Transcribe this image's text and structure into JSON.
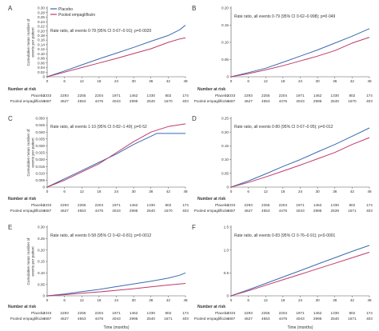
{
  "chart_data": [
    {
      "panel": "A",
      "type": "line",
      "ylabel": "Cumulative mean number of events per patient",
      "xlim": [
        0,
        48
      ],
      "ylim": [
        0,
        0.3
      ],
      "yticks": [
        "0",
        "0.02",
        "0.04",
        "0.06",
        "0.08",
        "0.10",
        "0.12",
        "0.14",
        "0.16",
        "0.18",
        "0.20",
        "0.22",
        "0.24",
        "0.26",
        "0.28",
        "0.30"
      ],
      "xticks": [
        0,
        6,
        12,
        18,
        24,
        30,
        36,
        42,
        48
      ],
      "legend": [
        "Placebo",
        "Pooled empagliflozin"
      ],
      "annotation": "Rate ratio, all events 0·78 (95% CI 0·67–0·91); p=0·0020",
      "series": [
        {
          "name": "Placebo",
          "x": [
            0,
            6,
            12,
            18,
            24,
            30,
            36,
            42,
            46,
            48
          ],
          "y": [
            0,
            0.025,
            0.052,
            0.078,
            0.103,
            0.128,
            0.155,
            0.18,
            0.205,
            0.225
          ]
        },
        {
          "name": "Pooled empagliflozin",
          "x": [
            0,
            6,
            12,
            18,
            24,
            30,
            36,
            42,
            46,
            48
          ],
          "y": [
            0,
            0.02,
            0.04,
            0.06,
            0.08,
            0.101,
            0.122,
            0.15,
            0.165,
            0.17
          ]
        }
      ],
      "risk_title": "Number at risk",
      "risk": {
        "Placebo": [
          "2333",
          "2293",
          "2255",
          "2204",
          "1971",
          "1462",
          "1330",
          "802",
          "174"
        ],
        "Pooled empagliflozin": [
          "4687",
          "4627",
          "4553",
          "4476",
          "4043",
          "2995",
          "2540",
          "1670",
          "403"
        ]
      }
    },
    {
      "panel": "B",
      "type": "line",
      "xlim": [
        0,
        48
      ],
      "ylim": [
        0,
        0.2
      ],
      "yticks": [
        "0",
        "0.05",
        "0.10",
        "0.15",
        "0.20"
      ],
      "xticks": [
        0,
        6,
        12,
        18,
        24,
        30,
        36,
        42,
        48
      ],
      "annotation": "Rate ratio, all events 0·79 (95% CI 0·62–0·998); p=0·049",
      "series": [
        {
          "name": "Placebo",
          "x": [
            0,
            6,
            12,
            18,
            24,
            30,
            36,
            42,
            48
          ],
          "y": [
            0,
            0.012,
            0.025,
            0.042,
            0.06,
            0.078,
            0.098,
            0.118,
            0.14
          ]
        },
        {
          "name": "Pooled empagliflozin",
          "x": [
            0,
            6,
            12,
            18,
            24,
            30,
            36,
            42,
            48
          ],
          "y": [
            0,
            0.009,
            0.02,
            0.032,
            0.046,
            0.06,
            0.076,
            0.098,
            0.115
          ]
        }
      ],
      "risk_title": "Number at risk",
      "risk": {
        "Placebo": [
          "2333",
          "2293",
          "2255",
          "2204",
          "1971",
          "1462",
          "1330",
          "802",
          "174"
        ],
        "Pooled empagliflozin": [
          "4687",
          "4627",
          "4553",
          "4476",
          "4043",
          "2995",
          "2540",
          "1670",
          "403"
        ]
      }
    },
    {
      "panel": "C",
      "type": "line",
      "ylabel": "Cumulative mean number of events per patient",
      "xlim": [
        0,
        48
      ],
      "ylim": [
        0,
        0.05
      ],
      "yticks": [
        "0",
        "0.005",
        "0.010",
        "0.015",
        "0.020",
        "0.025",
        "0.030",
        "0.035",
        "0.040",
        "0.045",
        "0.050"
      ],
      "xticks": [
        0,
        6,
        12,
        18,
        24,
        30,
        36,
        42,
        48
      ],
      "annotation": "Rate ratio, all events 1·10 (95% CI 0·82–1·49); p=0·52",
      "series": [
        {
          "name": "Placebo",
          "x": [
            0,
            6,
            12,
            18,
            24,
            30,
            36,
            38,
            48
          ],
          "y": [
            0,
            0.006,
            0.012,
            0.018,
            0.024,
            0.031,
            0.037,
            0.039,
            0.039
          ]
        },
        {
          "name": "Pooled empagliflozin",
          "x": [
            0,
            6,
            12,
            18,
            24,
            30,
            36,
            42,
            48
          ],
          "y": [
            0,
            0.005,
            0.011,
            0.017,
            0.025,
            0.033,
            0.04,
            0.044,
            0.046
          ]
        }
      ],
      "risk_title": "Number at risk",
      "risk": {
        "Placebo": [
          "2333",
          "2293",
          "2255",
          "2204",
          "1971",
          "1462",
          "1330",
          "802",
          "174"
        ],
        "Pooled empagliflozin": [
          "4687",
          "4627",
          "4553",
          "4476",
          "4043",
          "2995",
          "2540",
          "1670",
          "403"
        ]
      }
    },
    {
      "panel": "D",
      "type": "line",
      "xlim": [
        0,
        48
      ],
      "ylim": [
        0,
        0.25
      ],
      "yticks": [
        "0",
        "0.05",
        "0.10",
        "0.15",
        "0.20",
        "0.25"
      ],
      "xticks": [
        0,
        6,
        12,
        18,
        24,
        30,
        36,
        42,
        48
      ],
      "annotation": "Rate ratio, all events 0·80 (95% CI 0·67–0·95); p=0·012",
      "series": [
        {
          "name": "Placebo",
          "x": [
            0,
            6,
            12,
            18,
            24,
            30,
            36,
            42,
            48
          ],
          "y": [
            0,
            0.022,
            0.048,
            0.075,
            0.1,
            0.128,
            0.155,
            0.185,
            0.215
          ]
        },
        {
          "name": "Pooled empagliflozin",
          "x": [
            0,
            6,
            12,
            18,
            24,
            30,
            36,
            42,
            48
          ],
          "y": [
            0,
            0.017,
            0.037,
            0.058,
            0.08,
            0.103,
            0.126,
            0.155,
            0.18
          ]
        }
      ],
      "risk_title": "Number at risk",
      "risk": {
        "Placebo": [
          "2333",
          "2293",
          "2255",
          "2204",
          "1971",
          "1462",
          "1330",
          "802",
          "174"
        ],
        "Pooled empagliflozin": [
          "4687",
          "4627",
          "4553",
          "4476",
          "4043",
          "2995",
          "2539",
          "1671",
          "403"
        ]
      }
    },
    {
      "panel": "E",
      "type": "line",
      "ylabel": "Cumulative mean number of events per patient",
      "xlim": [
        0,
        48
      ],
      "ylim": [
        0,
        0.3
      ],
      "yticks": [
        "0",
        "0.05",
        "0.10",
        "0.15",
        "0.20",
        "0.25",
        "0.30"
      ],
      "xticks": [
        0,
        6,
        12,
        18,
        24,
        30,
        36,
        42,
        48
      ],
      "annotation": "Rate ratio, all events 0·58 (95% CI 0·42–0·81); p=0·0012",
      "series": [
        {
          "name": "Placebo",
          "x": [
            0,
            6,
            12,
            18,
            24,
            30,
            36,
            42,
            46,
            48
          ],
          "y": [
            0,
            0.008,
            0.018,
            0.028,
            0.04,
            0.052,
            0.064,
            0.077,
            0.09,
            0.1
          ]
        },
        {
          "name": "Pooled empagliflozin",
          "x": [
            0,
            6,
            12,
            18,
            24,
            30,
            36,
            42,
            48
          ],
          "y": [
            0,
            0.005,
            0.011,
            0.017,
            0.024,
            0.031,
            0.039,
            0.047,
            0.054
          ]
        }
      ],
      "risk_title": "Number at risk",
      "risk": {
        "Placebo": [
          "2333",
          "2293",
          "2255",
          "2204",
          "1971",
          "1462",
          "1330",
          "802",
          "174"
        ],
        "Pooled empagliflozin": [
          "4687",
          "4627",
          "4553",
          "4476",
          "4043",
          "2995",
          "2540",
          "1671",
          "403"
        ]
      }
    },
    {
      "panel": "F",
      "type": "line",
      "xlim": [
        0,
        48
      ],
      "ylim": [
        0,
        1.5
      ],
      "yticks": [
        "0",
        "0.5",
        "1.0",
        "1.5"
      ],
      "xticks": [
        0,
        6,
        12,
        18,
        24,
        30,
        36,
        42,
        48
      ],
      "annotation": "Rate ratio, all events 0·83 (95% CI 0·76–0·91); p<0·0001",
      "xlabel": "Time (months)",
      "series": [
        {
          "name": "Placebo",
          "x": [
            0,
            6,
            12,
            18,
            24,
            30,
            36,
            42,
            48
          ],
          "y": [
            0,
            0.13,
            0.27,
            0.41,
            0.55,
            0.69,
            0.83,
            0.97,
            1.1
          ]
        },
        {
          "name": "Pooled empagliflozin",
          "x": [
            0,
            6,
            12,
            18,
            24,
            30,
            36,
            42,
            48
          ],
          "y": [
            0,
            0.11,
            0.23,
            0.35,
            0.47,
            0.59,
            0.71,
            0.83,
            0.95
          ]
        }
      ],
      "risk_title": "Number at risk",
      "risk": {
        "Placebo": [
          "2333",
          "2293",
          "2255",
          "2204",
          "1971",
          "1462",
          "1330",
          "802",
          "174"
        ],
        "Pooled empagliflozin": [
          "4687",
          "4627",
          "4553",
          "4476",
          "4043",
          "2995",
          "2540",
          "1671",
          "403"
        ]
      }
    }
  ],
  "common": {
    "xlabel": "Time (months)",
    "colors": {
      "Placebo": "#3a6bb0",
      "Pooled empagliflozin": "#c03a6a",
      "axis": "#555555"
    }
  }
}
